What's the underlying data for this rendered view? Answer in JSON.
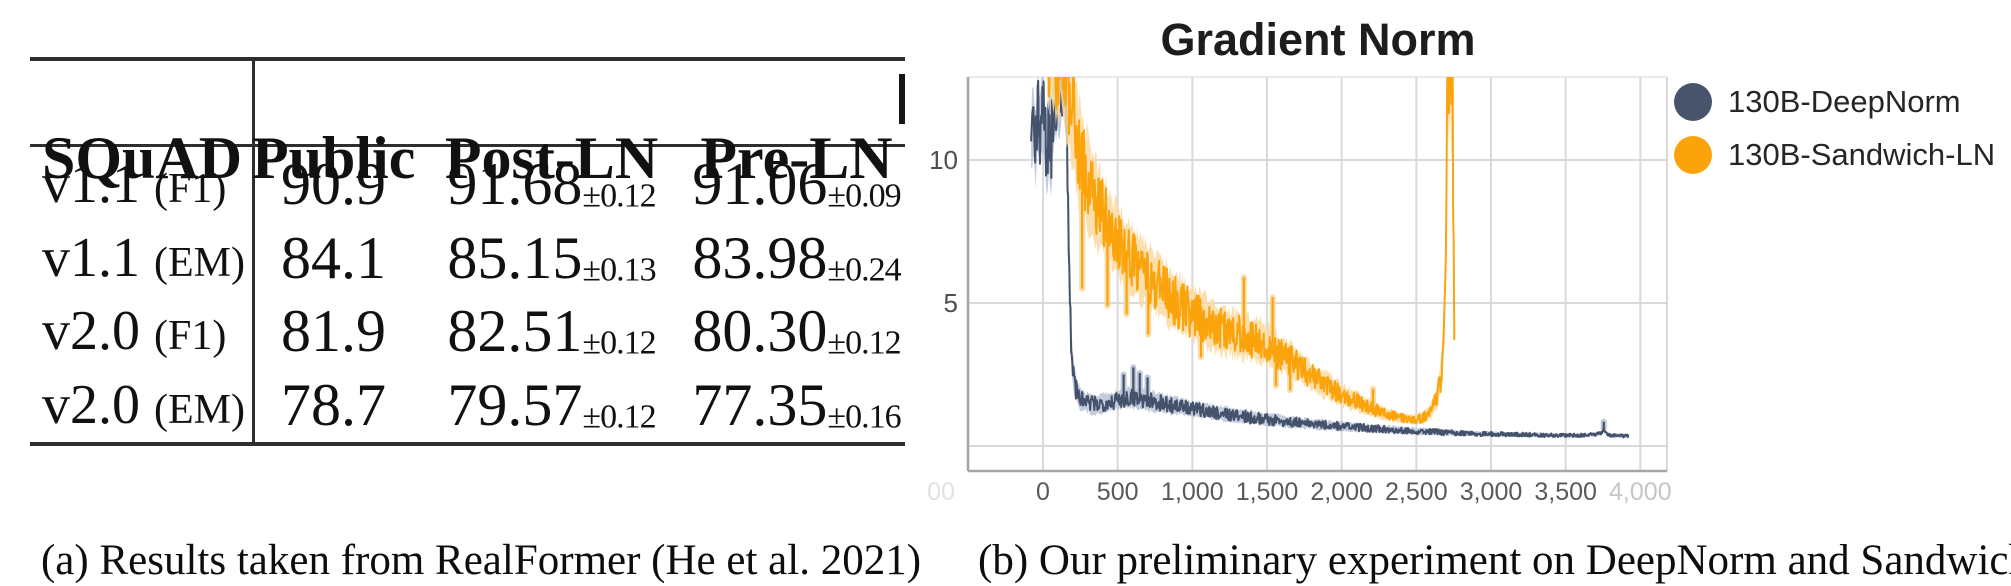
{
  "figure": {
    "caption_a": "(a) Results taken from RealFormer (He et al. 2021)",
    "caption_b": "(b) Our preliminary experiment on DeepNorm and Sandwich-LN"
  },
  "table": {
    "headers": [
      "SQuAD",
      "Public",
      "Post-LN",
      "Pre-LN"
    ],
    "rows": [
      {
        "version": "v1.1",
        "metric": "(F1)",
        "public": "90.9",
        "post_ln": "91.68",
        "post_ln_pm": "±0.12",
        "pre_ln": "91.06",
        "pre_ln_pm": "±0.09"
      },
      {
        "version": "v1.1",
        "metric": "(EM)",
        "public": "84.1",
        "post_ln": "85.15",
        "post_ln_pm": "±0.13",
        "pre_ln": "83.98",
        "pre_ln_pm": "±0.24"
      },
      {
        "version": "v2.0",
        "metric": "(F1)",
        "public": "81.9",
        "post_ln": "82.51",
        "post_ln_pm": "±0.12",
        "pre_ln": "80.30",
        "pre_ln_pm": "±0.12"
      },
      {
        "version": "v2.0",
        "metric": "(EM)",
        "public": "78.7",
        "post_ln": "79.57",
        "post_ln_pm": "±0.12",
        "pre_ln": "77.35",
        "pre_ln_pm": "±0.16"
      }
    ]
  },
  "chart_data": {
    "type": "line",
    "title": "Gradient Norm",
    "xlabel": "",
    "ylabel": "",
    "x_axis": {
      "min": -527,
      "max": 4209
    },
    "y_axis": {
      "min": -0.9,
      "max": 12.9
    },
    "grid": {
      "x_steps": [
        -500,
        0,
        500,
        1000,
        1500,
        2000,
        2500,
        3000,
        3500,
        4000
      ],
      "y_values": [
        10,
        5,
        0
      ]
    },
    "y_ticks": [
      {
        "label": "10",
        "v": 10
      },
      {
        "label": "5",
        "v": 5
      }
    ],
    "x_ticks": [
      {
        "label": "00",
        "x": 941,
        "color": "#e2e2e2"
      },
      {
        "label": "0",
        "step": 0
      },
      {
        "label": "500",
        "step": 500
      },
      {
        "label": "1,000",
        "step": 1000
      },
      {
        "label": "1,500",
        "step": 1500
      },
      {
        "label": "2,000",
        "step": 2000
      },
      {
        "label": "2,500",
        "step": 2500
      },
      {
        "label": "3,000",
        "step": 3000
      },
      {
        "label": "3,500",
        "step": 3500
      },
      {
        "label": "4,000",
        "step": 4000,
        "color": "#c6c6c6"
      }
    ],
    "legend": [
      {
        "label": "130B-DeepNorm",
        "color": "#47546C",
        "halo": "#b9c3d6"
      },
      {
        "label": "130B-Sandwich-LN",
        "color": "#FBA30B",
        "halo": "#fcd9a1"
      }
    ],
    "colors": {
      "gridline": "#d9d9d9",
      "axis": "#a6a6a6",
      "frame_light": "#cccccc"
    },
    "series": [
      {
        "name": "130B-DeepNorm",
        "color": "#45526B",
        "halo": "#b9c3d6",
        "mean": [
          [
            -80,
            10.6
          ],
          [
            -65,
            11.4
          ],
          [
            -50,
            10.2
          ],
          [
            -35,
            11.8
          ],
          [
            -20,
            10.9
          ],
          [
            -5,
            12.3
          ],
          [
            10,
            11.0
          ],
          [
            25,
            10.3
          ],
          [
            40,
            11.2
          ],
          [
            55,
            10.5
          ],
          [
            70,
            11.6
          ],
          [
            85,
            12.2
          ],
          [
            100,
            12.6
          ],
          [
            115,
            12.1
          ],
          [
            130,
            12.8
          ],
          [
            145,
            12.6
          ],
          [
            158,
            11.5
          ],
          [
            168,
            8.5
          ],
          [
            178,
            5.2
          ],
          [
            190,
            3.4
          ],
          [
            205,
            2.4
          ],
          [
            225,
            1.9
          ],
          [
            250,
            1.65
          ],
          [
            300,
            1.5
          ],
          [
            350,
            1.45
          ],
          [
            400,
            1.5
          ],
          [
            450,
            1.55
          ],
          [
            500,
            1.6
          ],
          [
            550,
            1.68
          ],
          [
            600,
            1.72
          ],
          [
            650,
            1.66
          ],
          [
            700,
            1.6
          ],
          [
            750,
            1.55
          ],
          [
            800,
            1.5
          ],
          [
            850,
            1.44
          ],
          [
            900,
            1.4
          ],
          [
            1000,
            1.3
          ],
          [
            1100,
            1.22
          ],
          [
            1200,
            1.14
          ],
          [
            1300,
            1.06
          ],
          [
            1400,
            0.99
          ],
          [
            1500,
            0.93
          ],
          [
            1600,
            0.87
          ],
          [
            1700,
            0.82
          ],
          [
            1800,
            0.77
          ],
          [
            1900,
            0.73
          ],
          [
            2000,
            0.69
          ],
          [
            2100,
            0.65
          ],
          [
            2200,
            0.62
          ],
          [
            2300,
            0.58
          ],
          [
            2400,
            0.55
          ],
          [
            2500,
            0.52
          ],
          [
            2600,
            0.5
          ],
          [
            2700,
            0.47
          ],
          [
            2800,
            0.45
          ],
          [
            2900,
            0.43
          ],
          [
            3000,
            0.42
          ],
          [
            3100,
            0.41
          ],
          [
            3200,
            0.4
          ],
          [
            3300,
            0.39
          ],
          [
            3400,
            0.38
          ],
          [
            3500,
            0.37
          ],
          [
            3600,
            0.37
          ],
          [
            3680,
            0.4
          ],
          [
            3740,
            0.44
          ],
          [
            3755,
            0.6
          ],
          [
            3770,
            0.42
          ],
          [
            3800,
            0.38
          ],
          [
            3850,
            0.37
          ],
          [
            3920,
            0.35
          ]
        ],
        "amp": [
          [
            -80,
            1.5
          ],
          [
            -20,
            1.7
          ],
          [
            60,
            1.9
          ],
          [
            140,
            1.6
          ],
          [
            160,
            1.8
          ],
          [
            180,
            1.2
          ],
          [
            200,
            0.6
          ],
          [
            250,
            0.45
          ],
          [
            350,
            0.4
          ],
          [
            500,
            0.42
          ],
          [
            650,
            0.45
          ],
          [
            800,
            0.4
          ],
          [
            1000,
            0.34
          ],
          [
            1300,
            0.3
          ],
          [
            1600,
            0.26
          ],
          [
            2000,
            0.2
          ],
          [
            2400,
            0.16
          ],
          [
            2800,
            0.12
          ],
          [
            3200,
            0.1
          ],
          [
            3600,
            0.09
          ],
          [
            3920,
            0.08
          ]
        ],
        "spikes": [
          [
            540,
            2.5
          ],
          [
            605,
            2.75
          ],
          [
            648,
            2.55
          ],
          [
            700,
            2.4
          ],
          [
            3755,
            0.85
          ]
        ]
      },
      {
        "name": "130B-Sandwich-LN",
        "color": "#FBA30B",
        "halo": "#fcd9a1",
        "mean": [
          [
            30,
            13.6
          ],
          [
            60,
            14.2
          ],
          [
            90,
            13.4
          ],
          [
            120,
            14.0
          ],
          [
            150,
            13.2
          ],
          [
            175,
            12.5
          ],
          [
            200,
            11.8
          ],
          [
            220,
            11.0
          ],
          [
            240,
            10.4
          ],
          [
            260,
            10.0
          ],
          [
            280,
            9.6
          ],
          [
            300,
            9.2
          ],
          [
            330,
            8.8
          ],
          [
            360,
            8.5
          ],
          [
            400,
            8.1
          ],
          [
            450,
            7.6
          ],
          [
            500,
            7.15
          ],
          [
            550,
            6.8
          ],
          [
            600,
            6.5
          ],
          [
            650,
            6.2
          ],
          [
            700,
            5.95
          ],
          [
            750,
            5.7
          ],
          [
            800,
            5.45
          ],
          [
            850,
            5.2
          ],
          [
            900,
            5.0
          ],
          [
            950,
            4.8
          ],
          [
            1000,
            4.6
          ],
          [
            1100,
            4.35
          ],
          [
            1200,
            4.1
          ],
          [
            1300,
            3.9
          ],
          [
            1400,
            3.75
          ],
          [
            1500,
            3.55
          ],
          [
            1600,
            3.2
          ],
          [
            1700,
            2.82
          ],
          [
            1800,
            2.45
          ],
          [
            1900,
            2.1
          ],
          [
            2000,
            1.8
          ],
          [
            2100,
            1.55
          ],
          [
            2200,
            1.32
          ],
          [
            2300,
            1.12
          ],
          [
            2400,
            0.98
          ],
          [
            2480,
            0.92
          ],
          [
            2550,
            1.0
          ],
          [
            2600,
            1.25
          ],
          [
            2640,
            1.7
          ],
          [
            2665,
            2.4
          ],
          [
            2682,
            3.6
          ],
          [
            2692,
            5.5
          ],
          [
            2700,
            8.5
          ],
          [
            2706,
            12
          ],
          [
            2712,
            14
          ],
          [
            2720,
            12.5
          ],
          [
            2727,
            14
          ],
          [
            2734,
            11.5
          ],
          [
            2741,
            13.5
          ],
          [
            2748,
            7
          ],
          [
            2755,
            3.2
          ]
        ],
        "amp": [
          [
            30,
            2.2
          ],
          [
            100,
            2.6
          ],
          [
            200,
            2.6
          ],
          [
            300,
            2.0
          ],
          [
            400,
            1.7
          ],
          [
            500,
            1.5
          ],
          [
            650,
            1.4
          ],
          [
            800,
            1.3
          ],
          [
            1000,
            1.2
          ],
          [
            1200,
            1.05
          ],
          [
            1400,
            0.95
          ],
          [
            1600,
            0.8
          ],
          [
            1800,
            0.62
          ],
          [
            2000,
            0.48
          ],
          [
            2200,
            0.34
          ],
          [
            2400,
            0.22
          ],
          [
            2500,
            0.2
          ],
          [
            2600,
            0.35
          ],
          [
            2660,
            0.6
          ],
          [
            2690,
            1.2
          ],
          [
            2710,
            2.2
          ],
          [
            2755,
            2.8
          ]
        ],
        "spikes": [
          [
            262,
            5.5
          ],
          [
            432,
            4.9
          ],
          [
            560,
            4.6
          ],
          [
            705,
            3.9
          ],
          [
            1058,
            3.1
          ],
          [
            1345,
            5.9
          ],
          [
            1538,
            5.2
          ],
          [
            1560,
            2.1
          ],
          [
            1655,
            1.95
          ],
          [
            2210,
            2.0
          ]
        ]
      }
    ]
  }
}
